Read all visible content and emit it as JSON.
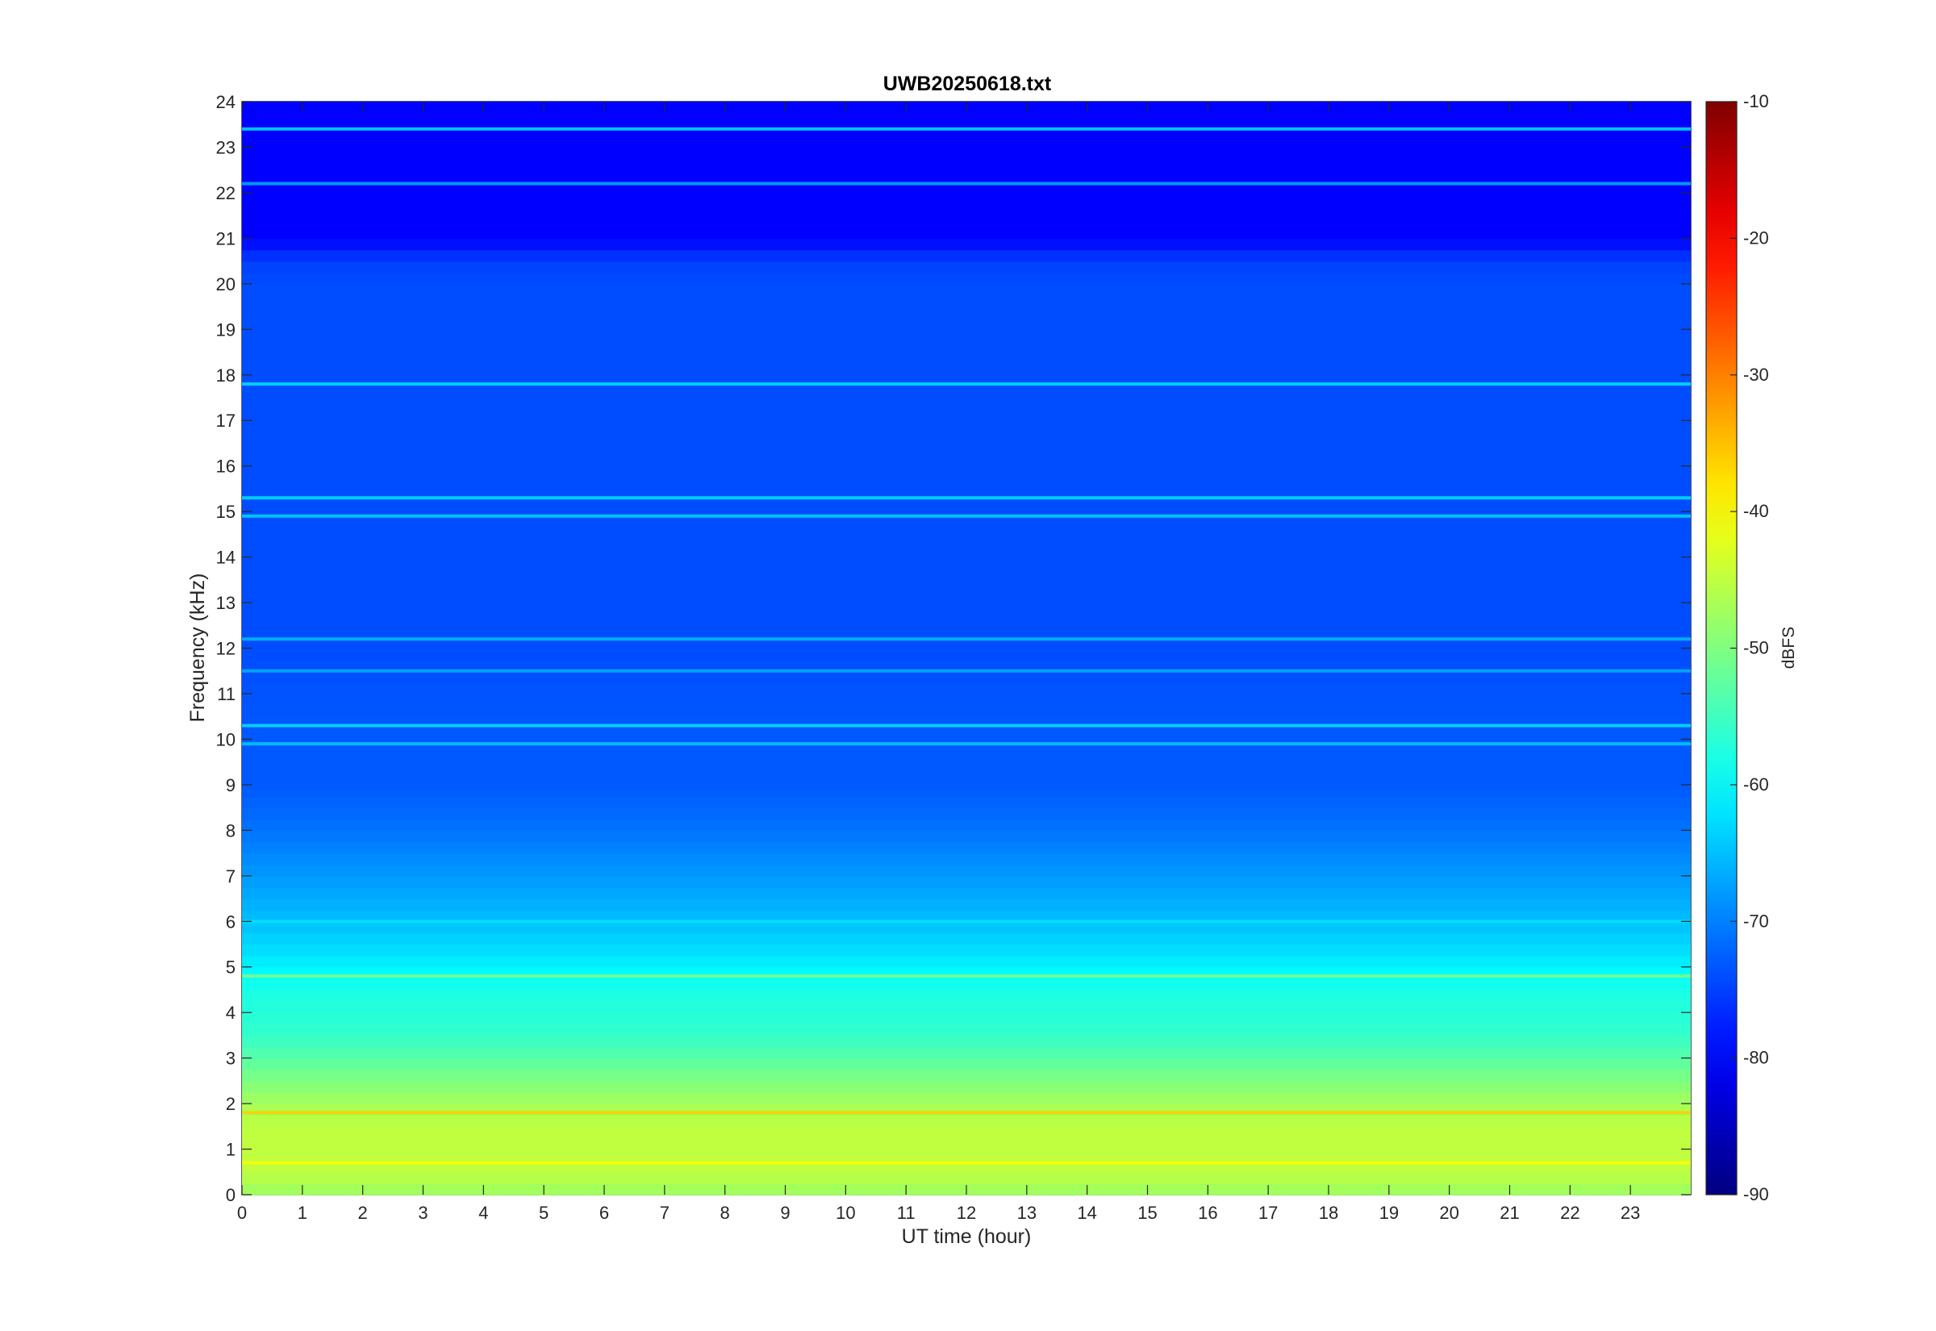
{
  "chart_data": {
    "type": "heatmap",
    "title": "UWB20250618.txt",
    "xlabel": "UT time (hour)",
    "ylabel": "Frequency (kHz)",
    "xlim": [
      0,
      24
    ],
    "ylim": [
      0,
      24
    ],
    "x_ticks": [
      0,
      1,
      2,
      3,
      4,
      5,
      6,
      7,
      8,
      9,
      10,
      11,
      12,
      13,
      14,
      15,
      16,
      17,
      18,
      19,
      20,
      21,
      22,
      23
    ],
    "y_ticks": [
      0,
      1,
      2,
      3,
      4,
      5,
      6,
      7,
      8,
      9,
      10,
      11,
      12,
      13,
      14,
      15,
      16,
      17,
      18,
      19,
      20,
      21,
      22,
      23,
      24
    ],
    "colorbar": {
      "label": "dBFS",
      "colormap": "jet",
      "clim": [
        -90,
        -10
      ],
      "ticks": [
        -90,
        -80,
        -70,
        -60,
        -50,
        -40,
        -30,
        -20,
        -10
      ]
    },
    "background_db_profile": [
      {
        "freq": 0.0,
        "db": -48
      },
      {
        "freq": 0.5,
        "db": -45
      },
      {
        "freq": 1.0,
        "db": -45
      },
      {
        "freq": 1.5,
        "db": -45
      },
      {
        "freq": 2.0,
        "db": -47
      },
      {
        "freq": 2.5,
        "db": -50
      },
      {
        "freq": 3.0,
        "db": -53
      },
      {
        "freq": 3.5,
        "db": -56
      },
      {
        "freq": 4.0,
        "db": -57
      },
      {
        "freq": 4.5,
        "db": -58
      },
      {
        "freq": 5.0,
        "db": -61
      },
      {
        "freq": 6.0,
        "db": -65
      },
      {
        "freq": 7.0,
        "db": -68
      },
      {
        "freq": 8.0,
        "db": -71
      },
      {
        "freq": 9.0,
        "db": -73
      },
      {
        "freq": 10.0,
        "db": -73
      },
      {
        "freq": 12.0,
        "db": -74
      },
      {
        "freq": 14.0,
        "db": -74
      },
      {
        "freq": 16.0,
        "db": -74
      },
      {
        "freq": 18.0,
        "db": -74
      },
      {
        "freq": 20.0,
        "db": -74
      },
      {
        "freq": 20.5,
        "db": -75
      },
      {
        "freq": 21.0,
        "db": -80
      },
      {
        "freq": 24.0,
        "db": -80
      }
    ],
    "tone_lines_khz_db": [
      {
        "freq": 23.4,
        "db": -62
      },
      {
        "freq": 22.2,
        "db": -66
      },
      {
        "freq": 17.8,
        "db": -62
      },
      {
        "freq": 15.3,
        "db": -62
      },
      {
        "freq": 14.9,
        "db": -63
      },
      {
        "freq": 12.2,
        "db": -65
      },
      {
        "freq": 11.5,
        "db": -66
      },
      {
        "freq": 10.3,
        "db": -62
      },
      {
        "freq": 9.9,
        "db": -64
      },
      {
        "freq": 6.0,
        "db": -62
      },
      {
        "freq": 4.8,
        "db": -50
      },
      {
        "freq": 1.8,
        "db": -36
      },
      {
        "freq": 0.7,
        "db": -40
      }
    ]
  }
}
